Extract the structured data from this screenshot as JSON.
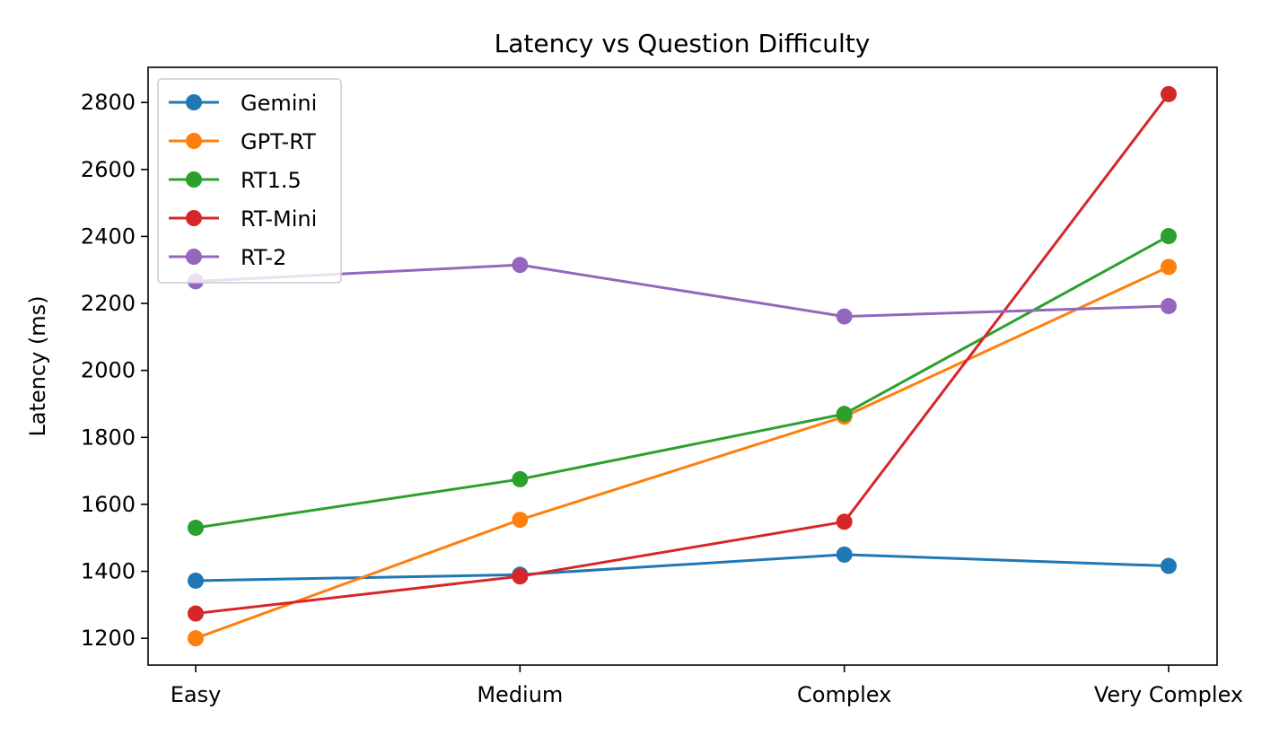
{
  "chart_data": {
    "type": "line",
    "title": "Latency vs Question Difficulty",
    "xlabel": "",
    "ylabel": "Latency (ms)",
    "categories": [
      "Easy",
      "Medium",
      "Complex",
      "Very Complex"
    ],
    "ylim": [
      1120,
      2905
    ],
    "yticks": [
      1200,
      1400,
      1600,
      1800,
      2000,
      2200,
      2400,
      2600,
      2800
    ],
    "grid": false,
    "legend_position": "upper-left",
    "series": [
      {
        "name": "Gemini",
        "color": "#1f77b4",
        "values": [
          1372,
          1390,
          1450,
          1416
        ]
      },
      {
        "name": "GPT-RT",
        "color": "#ff7f0e",
        "values": [
          1200,
          1554,
          1862,
          2309
        ]
      },
      {
        "name": "RT1.5",
        "color": "#2ca02c",
        "values": [
          1530,
          1675,
          1870,
          2401
        ]
      },
      {
        "name": "RT-Mini",
        "color": "#d62728",
        "values": [
          1274,
          1385,
          1548,
          2825
        ]
      },
      {
        "name": "RT-2",
        "color": "#9467bd",
        "values": [
          2266,
          2315,
          2161,
          2192
        ]
      }
    ]
  }
}
